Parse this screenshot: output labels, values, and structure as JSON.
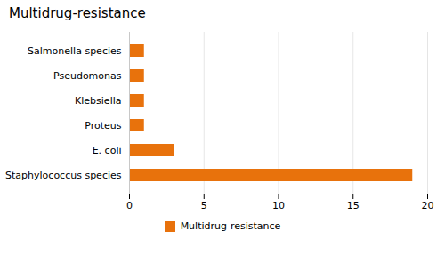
{
  "chart_data": {
    "type": "bar",
    "title": "Multidrug-resistance",
    "orientation": "horizontal",
    "categories": [
      "Staphylococcus species",
      "E. coli",
      "Proteus",
      "Klebsiella",
      "Pseudomonas",
      "Salmonella species"
    ],
    "series": [
      {
        "name": "Multidrug-resistance",
        "color": "#E8720C",
        "values": [
          19,
          3,
          1,
          1,
          1,
          1
        ]
      }
    ],
    "xlim": [
      0,
      20
    ],
    "xticks": [
      0,
      5,
      10,
      15,
      20
    ],
    "grid": true,
    "legend": "bottom"
  }
}
